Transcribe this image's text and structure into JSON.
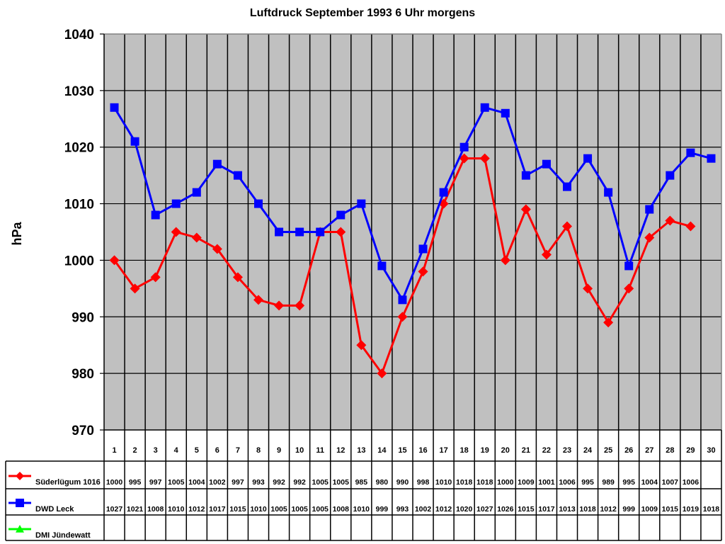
{
  "chart_data": {
    "type": "line",
    "title": "Luftdruck September 1993 6 Uhr morgens",
    "xlabel": "",
    "ylabel": "hPa",
    "ylim": [
      970,
      1040
    ],
    "yticks": [
      970,
      980,
      990,
      1000,
      1010,
      1020,
      1030,
      1040
    ],
    "grid": true,
    "plot_background": "#c0c0c0",
    "legend_position": "data-table-below",
    "categories": [
      "1",
      "2",
      "3",
      "4",
      "5",
      "6",
      "7",
      "8",
      "9",
      "10",
      "11",
      "12",
      "13",
      "14",
      "15",
      "16",
      "17",
      "18",
      "19",
      "20",
      "21",
      "22",
      "23",
      "24",
      "25",
      "26",
      "27",
      "28",
      "29",
      "30"
    ],
    "series": [
      {
        "name": "Süderlügum 1016",
        "color": "#ff0000",
        "marker": "diamond",
        "values": [
          1000,
          995,
          997,
          1005,
          1004,
          1002,
          997,
          993,
          992,
          992,
          1005,
          1005,
          985,
          980,
          990,
          998,
          1010,
          1018,
          1018,
          1000,
          1009,
          1001,
          1006,
          995,
          989,
          995,
          1004,
          1007,
          1006,
          null
        ]
      },
      {
        "name": "DWD Leck",
        "color": "#0000ff",
        "marker": "square",
        "values": [
          1027,
          1021,
          1008,
          1010,
          1012,
          1017,
          1015,
          1010,
          1005,
          1005,
          1005,
          1008,
          1010,
          999,
          993,
          1002,
          1012,
          1020,
          1027,
          1026,
          1015,
          1017,
          1013,
          1018,
          1012,
          999,
          1009,
          1015,
          1019,
          1018
        ]
      },
      {
        "name": "DMI Jündewatt",
        "color": "#00ff00",
        "marker": "triangle",
        "values": [
          null,
          null,
          null,
          null,
          null,
          null,
          null,
          null,
          null,
          null,
          null,
          null,
          null,
          null,
          null,
          null,
          null,
          null,
          null,
          null,
          null,
          null,
          null,
          null,
          null,
          null,
          null,
          null,
          null,
          null
        ]
      }
    ]
  }
}
